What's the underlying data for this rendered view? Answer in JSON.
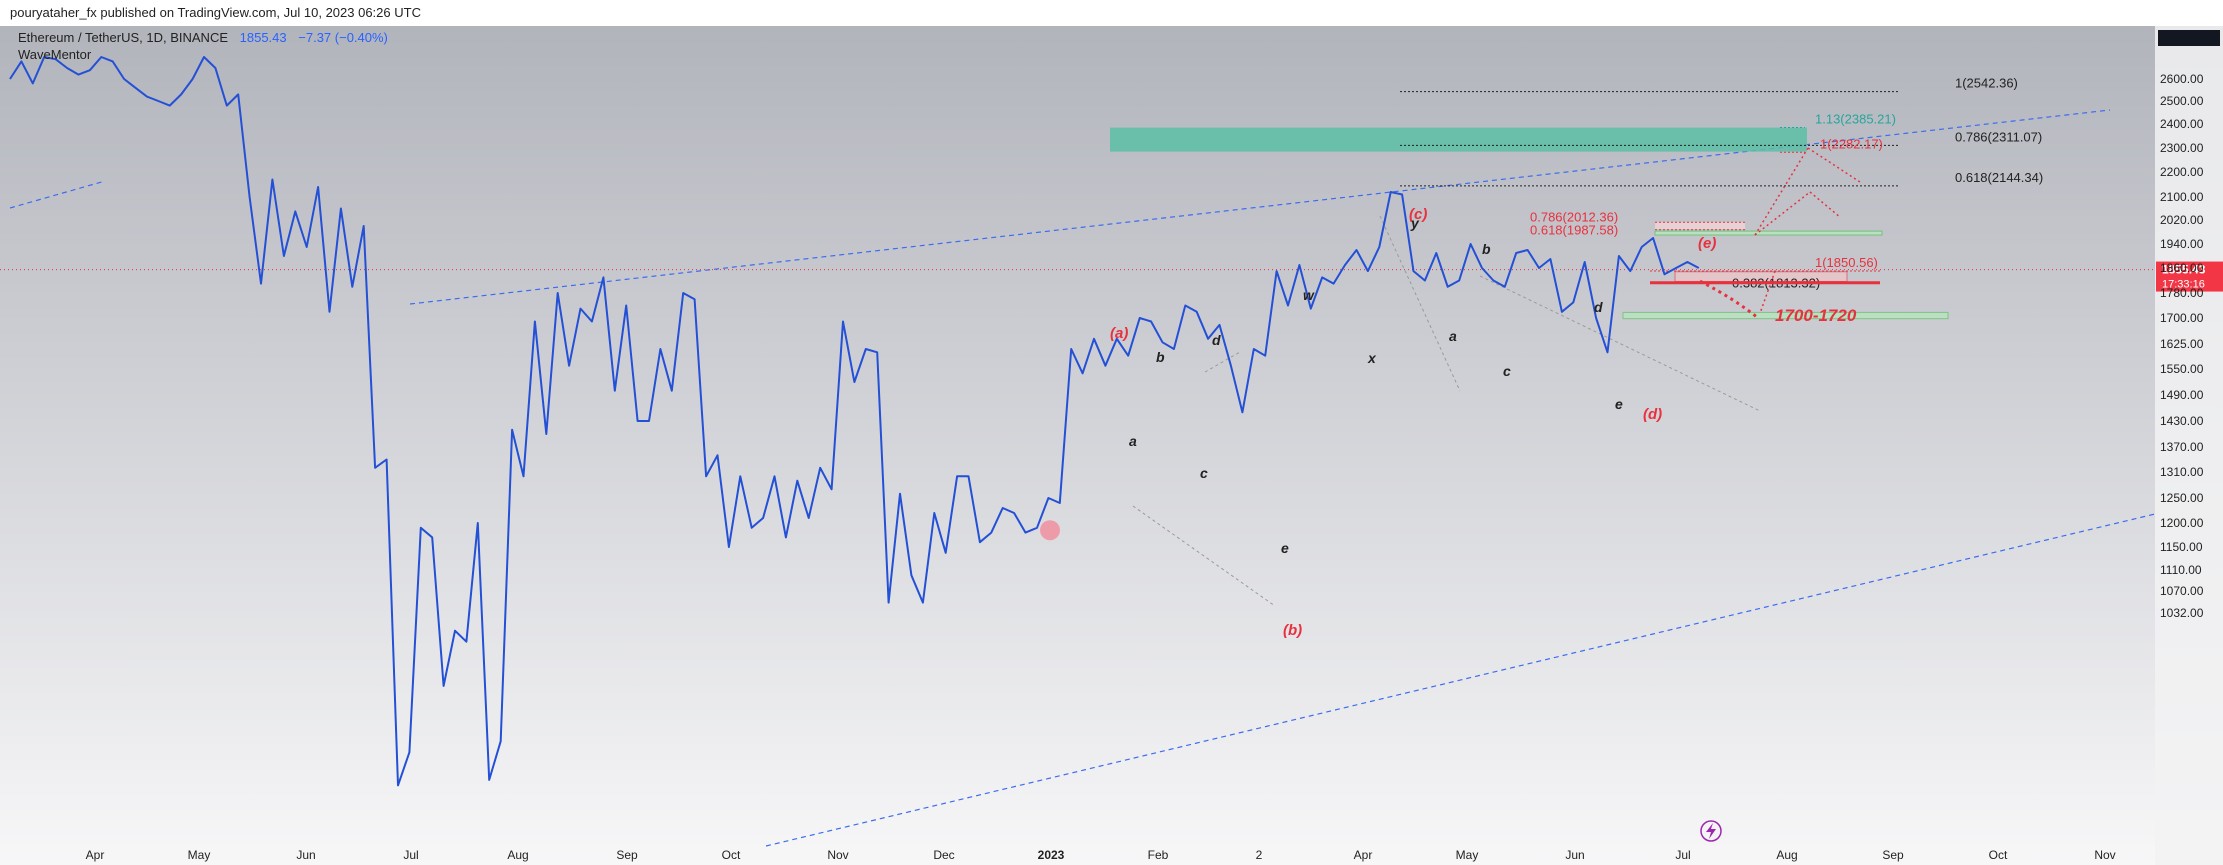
{
  "header": {
    "published_by": "pouryataher_fx published on TradingView.com, Jul 10, 2023 06:26 UTC"
  },
  "symbol": {
    "name": "Ethereum / TetherUS, 1D, BINANCE",
    "price": "1855.43",
    "change": "−7.37 (−0.40%)",
    "indicator": "WaveMentor"
  },
  "colors": {
    "price_line": "#2450d6",
    "label_red": "#e8313e",
    "label_black": "#222222",
    "zone_green": "#5bbfa4",
    "fib_green": "#26a69a",
    "trend_blue": "#3d6cf0",
    "current_badge": "#f23645"
  },
  "chart_data": {
    "type": "line",
    "title": "",
    "xlabel": "",
    "ylabel": "",
    "ylim": [
      1032,
      2660
    ],
    "yaxis_ticks": [
      "2600.00",
      "2500.00",
      "2400.00",
      "2300.00",
      "2200.00",
      "2100.00",
      "2020.00",
      "1940.00",
      "1860.00",
      "1780.00",
      "1700.00",
      "1625.00",
      "1550.00",
      "1490.00",
      "1430.00",
      "1370.00",
      "1310.00",
      "1250.00",
      "1200.00",
      "1150.00",
      "1110.00",
      "1070.00",
      "1032.00"
    ],
    "xaxis_ticks": [
      "Apr",
      "May",
      "Jun",
      "Jul",
      "Aug",
      "Sep",
      "Oct",
      "Nov",
      "Dec",
      "2023",
      "Feb",
      "2",
      "Apr",
      "May",
      "Jun",
      "Jul",
      "Aug",
      "Sep",
      "Oct",
      "Nov"
    ],
    "current_price": {
      "value": "1855.43",
      "countdown": "17:33:16"
    },
    "series": [
      {
        "values": [
          2600,
          2680,
          2580,
          2700,
          2690,
          2650,
          2620,
          2640,
          2700,
          2680,
          2600,
          2560,
          2520,
          2500,
          2480,
          2530,
          2600,
          2700,
          2650,
          2480,
          2530,
          2100,
          1810,
          2170,
          1900,
          2050,
          1930,
          2140,
          1720,
          2060,
          1800,
          2000,
          1320,
          1340,
          720,
          780,
          1190,
          1170,
          900,
          1000,
          980,
          1200,
          730,
          800,
          1410,
          1300,
          1690,
          1400,
          1780,
          1560,
          1730,
          1690,
          1830,
          1500,
          1740,
          1430,
          1430,
          1610,
          1500,
          1780,
          1760,
          1300,
          1350,
          1150,
          1300,
          1190,
          1210,
          1300,
          1170,
          1290,
          1210,
          1320,
          1270,
          1690,
          1520,
          1610,
          1600,
          1050,
          1260,
          1100,
          1050,
          1220,
          1140,
          1300,
          1300,
          1160,
          1180,
          1230,
          1220,
          1180,
          1190,
          1250,
          1240,
          1610,
          1540,
          1640,
          1560,
          1640,
          1590,
          1700,
          1690,
          1630,
          1610,
          1740,
          1720,
          1640,
          1680,
          1560,
          1450,
          1610,
          1590,
          1850,
          1740,
          1870,
          1730,
          1830,
          1810,
          1870,
          1920,
          1850,
          1930,
          2120,
          2110,
          1850,
          1820,
          1910,
          1800,
          1820,
          1940,
          1860,
          1820,
          1800,
          1910,
          1920,
          1860,
          1890,
          1720,
          1750,
          1880,
          1700,
          1600,
          1900,
          1850,
          1930,
          1960,
          1840,
          1860,
          1880,
          1860
        ]
      }
    ],
    "fib_levels": [
      {
        "label": "1(2542.36)",
        "value": 2542.36
      },
      {
        "label": "0.786(2311.07)",
        "value": 2311.07
      },
      {
        "label": "0.618(2144.34)",
        "value": 2144.34
      },
      {
        "label": "1.13(2385.21)",
        "value": 2385.21
      },
      {
        "label": "1(2282.17)",
        "value": 2282.17
      },
      {
        "label": "0.786(2012.36)",
        "value": 2012.36
      },
      {
        "label": "0.618(1987.58)",
        "value": 1987.58
      },
      {
        "label": "1(1850.56)",
        "value": 1850.56
      },
      {
        "label": "0.382(1813.32)",
        "value": 1813.32
      },
      {
        "label": "1700-1720",
        "value": 1710
      }
    ],
    "wave_labels": [
      {
        "text": "(a)",
        "color": "red"
      },
      {
        "text": "(b)",
        "color": "red"
      },
      {
        "text": "(c)",
        "color": "red"
      },
      {
        "text": "(d)",
        "color": "red"
      },
      {
        "text": "(e)",
        "color": "red"
      },
      {
        "text": "a",
        "color": "black"
      },
      {
        "text": "b",
        "color": "black"
      },
      {
        "text": "c",
        "color": "black"
      },
      {
        "text": "d",
        "color": "black"
      },
      {
        "text": "e",
        "color": "black"
      },
      {
        "text": "w",
        "color": "black"
      },
      {
        "text": "x",
        "color": "black"
      },
      {
        "text": "y",
        "color": "black"
      },
      {
        "text": "a",
        "color": "black"
      },
      {
        "text": "b",
        "color": "black"
      },
      {
        "text": "c",
        "color": "black"
      },
      {
        "text": "d",
        "color": "black"
      },
      {
        "text": "e",
        "color": "black"
      }
    ]
  }
}
